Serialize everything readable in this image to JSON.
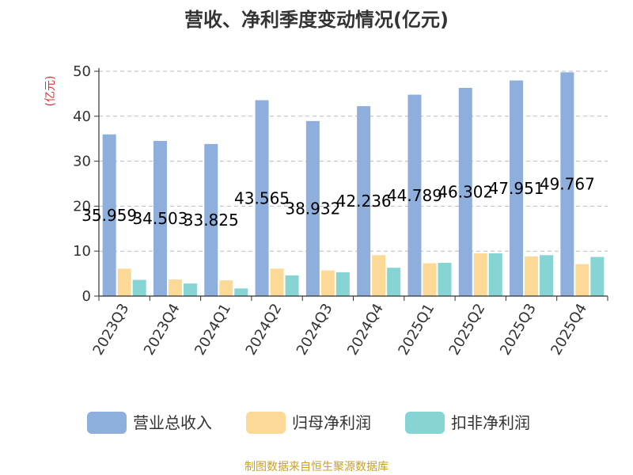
{
  "chart_data": {
    "type": "bar",
    "title": "营收、净利季度变动情况(亿元)",
    "ylabel": "(亿元)",
    "ylim": [
      0,
      50
    ],
    "yticks": [
      0,
      10,
      20,
      30,
      40,
      50
    ],
    "grid": true,
    "legend_position": "bottom",
    "categories": [
      "2023Q3",
      "2023Q4",
      "2024Q1",
      "2024Q2",
      "2024Q3",
      "2024Q4",
      "2025Q1",
      "2025Q2",
      "2025Q3",
      "2025Q4"
    ],
    "series": [
      {
        "name": "营业总收入",
        "color": "#8eaedb",
        "values": [
          35.959,
          34.503,
          33.825,
          43.565,
          38.932,
          42.236,
          44.789,
          46.302,
          47.951,
          49.767
        ]
      },
      {
        "name": "归母净利润",
        "color": "#fdd998",
        "values": [
          6.1,
          3.7,
          3.5,
          6.1,
          5.7,
          9.1,
          7.3,
          9.5,
          8.8,
          7.1
        ]
      },
      {
        "name": "扣非净利润",
        "color": "#86d4d4",
        "values": [
          3.6,
          2.8,
          1.7,
          4.6,
          5.3,
          6.3,
          7.4,
          9.5,
          9.1,
          8.7
        ]
      }
    ],
    "data_labels": [
      "35.959",
      "34.503",
      "33.825",
      "43.565",
      "38.932",
      "42.236",
      "44.789",
      "46.302",
      "47.951",
      "49.767"
    ]
  },
  "source": "制图数据来自恒生聚源数据库"
}
